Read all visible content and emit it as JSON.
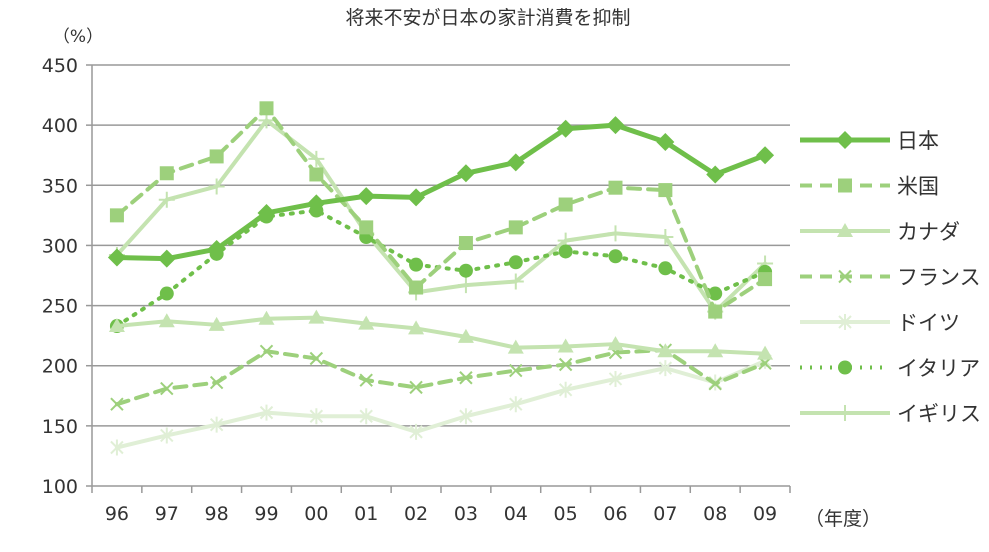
{
  "chart_data": {
    "type": "line",
    "title": "将来不安が日本の家計消費を抑制",
    "ylabel": "（%）",
    "xlabel": "（年度）",
    "ylim": [
      100,
      450
    ],
    "yticks": [
      100,
      150,
      200,
      250,
      300,
      350,
      400,
      450
    ],
    "categories": [
      "96",
      "97",
      "98",
      "99",
      "00",
      "01",
      "02",
      "03",
      "04",
      "05",
      "06",
      "07",
      "08",
      "09"
    ],
    "legend_position": "right",
    "grid": true,
    "series": [
      {
        "name": "日本",
        "color": "#6fbf4a",
        "style": "solid",
        "marker": "diamond",
        "width": 5,
        "values": [
          290,
          289,
          297,
          327,
          335,
          341,
          340,
          360,
          369,
          397,
          400,
          386,
          359,
          375
        ]
      },
      {
        "name": "米国",
        "color": "#9dd07c",
        "style": "dash",
        "marker": "square",
        "width": 4,
        "values": [
          325,
          360,
          374,
          414,
          359,
          315,
          265,
          302,
          315,
          334,
          348,
          346,
          245,
          272
        ]
      },
      {
        "name": "カナダ",
        "color": "#c4e3b0",
        "style": "solid",
        "marker": "triangle",
        "width": 4,
        "values": [
          233,
          237,
          234,
          239,
          240,
          235,
          231,
          224,
          215,
          216,
          218,
          212,
          212,
          210
        ]
      },
      {
        "name": "フランス",
        "color": "#9dd07c",
        "style": "dash",
        "marker": "x",
        "width": 4,
        "values": [
          168,
          181,
          186,
          212,
          206,
          188,
          182,
          190,
          196,
          201,
          211,
          213,
          185,
          202
        ]
      },
      {
        "name": "ドイツ",
        "color": "#e0efd6",
        "style": "solid",
        "marker": "star",
        "width": 4,
        "values": [
          132,
          142,
          151,
          161,
          158,
          158,
          145,
          158,
          168,
          180,
          189,
          198,
          186,
          204
        ]
      },
      {
        "name": "イタリア",
        "color": "#6fbf4a",
        "style": "dot",
        "marker": "circle",
        "width": 4,
        "values": [
          233,
          260,
          293,
          324,
          329,
          307,
          284,
          279,
          286,
          295,
          291,
          281,
          260,
          278
        ]
      },
      {
        "name": "イギリス",
        "color": "#c4e3b0",
        "style": "solid",
        "marker": "plus",
        "width": 4,
        "values": [
          292,
          338,
          349,
          404,
          372,
          310,
          261,
          267,
          270,
          304,
          310,
          307,
          245,
          285
        ]
      }
    ]
  }
}
